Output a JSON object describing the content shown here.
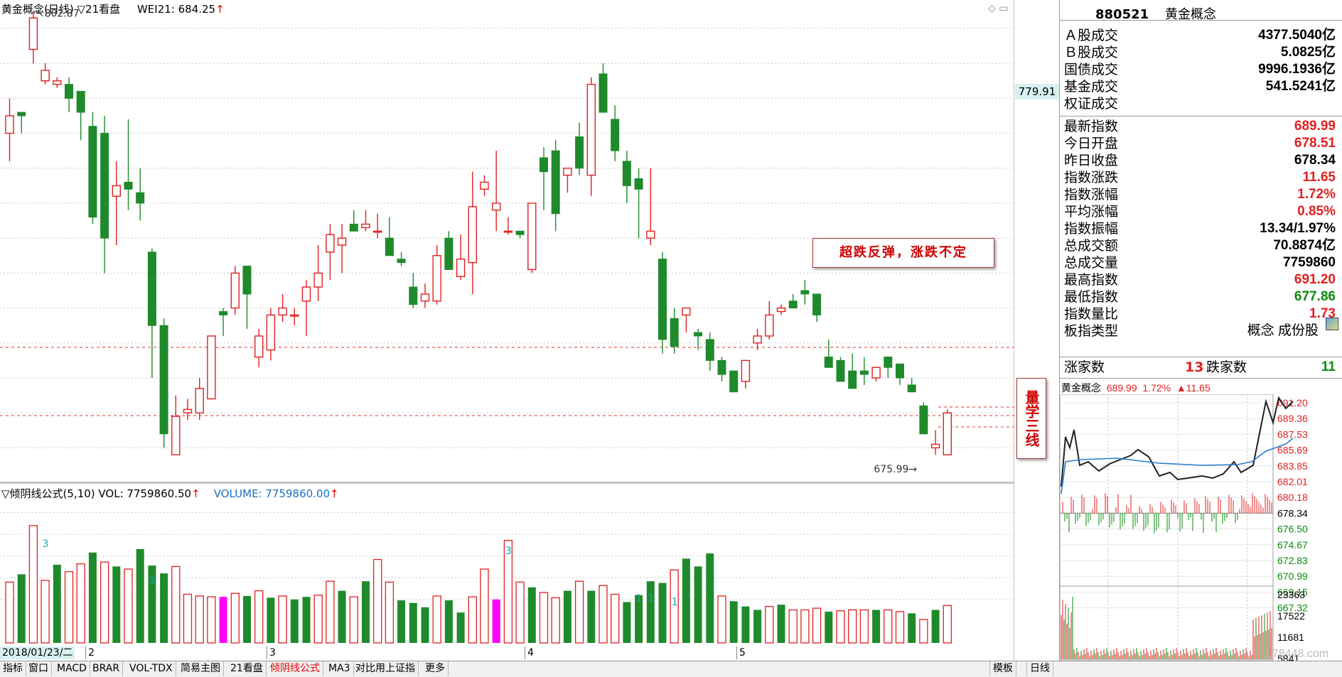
{
  "main": {
    "title": "黄金概念(日线)",
    "view": "▽21看盘",
    "wei_label": "WEI21: 684.25",
    "arrow": "↑",
    "y_ticks": [
      "800.0",
      "790.0",
      "780.0",
      "770.0",
      "760.0",
      "750.0",
      "740.0",
      "730.0",
      "720.0",
      "710.0",
      "700.0",
      "690.0",
      "680.0"
    ],
    "current_price_box": "779.91",
    "high_label": "802.87",
    "low_label": "675.99",
    "annotation": "超跌反弹，涨跌不定",
    "vertical_label": "量学三线",
    "corner_icons": "◇ ▭"
  },
  "volume": {
    "title": "▽倾阴线公式(5,10)",
    "vol_label": "VOL: 7759860.50",
    "volume_label": "VOLUME: 7759860.00",
    "arrow": "↑",
    "y_ticks": [
      "15000",
      "12500",
      "10000",
      "7500",
      "5000"
    ],
    "multiplier": "X1000",
    "markers": [
      "3",
      "3",
      "3",
      "1",
      "1",
      "1"
    ]
  },
  "x_axis": {
    "date": "2018/01/23/二",
    "months": [
      "2",
      "3",
      "4",
      "5"
    ],
    "period": "日线"
  },
  "panel": {
    "code": "880521",
    "name": "黄金概念",
    "rows": [
      {
        "label": "Ａ股成交",
        "value": "4377.5040亿",
        "color": "black"
      },
      {
        "label": "Ｂ股成交",
        "value": "5.0825亿",
        "color": "black"
      },
      {
        "label": "国债成交",
        "value": "9996.1936亿",
        "color": "black"
      },
      {
        "label": "基金成交",
        "value": "541.5241亿",
        "color": "black"
      },
      {
        "label": "权证成交",
        "value": "",
        "color": "black"
      },
      {
        "label": "最新指数",
        "value": "689.99",
        "color": "red"
      },
      {
        "label": "今日开盘",
        "value": "678.51",
        "color": "red"
      },
      {
        "label": "昨日收盘",
        "value": "678.34",
        "color": "black"
      },
      {
        "label": "指数涨跌",
        "value": "11.65",
        "color": "red"
      },
      {
        "label": "指数涨幅",
        "value": "1.72%",
        "color": "red"
      },
      {
        "label": "平均涨幅",
        "value": "0.85%",
        "color": "red"
      },
      {
        "label": "指数振幅",
        "value": "13.34/1.97%",
        "color": "black"
      },
      {
        "label": "总成交额",
        "value": "70.8874亿",
        "color": "black"
      },
      {
        "label": "总成交量",
        "value": "7759860",
        "color": "black"
      },
      {
        "label": "最高指数",
        "value": "691.20",
        "color": "red"
      },
      {
        "label": "最低指数",
        "value": "677.86",
        "color": "green"
      },
      {
        "label": "指数量比",
        "value": "1.73",
        "color": "red"
      },
      {
        "label": "板指类型",
        "value": "概念 成份股",
        "color": "black"
      }
    ],
    "up_label": "涨家数",
    "up_count": "13",
    "down_label": "跌家数",
    "down_count": "11",
    "mini_name": "黄金概念",
    "mini_price": "689.99",
    "mini_pct": "1.72%",
    "mini_change": "▲11.65",
    "mini_ticks_right": [
      "691.20",
      "689.36",
      "687.53",
      "685.69",
      "683.85",
      "682.01",
      "680.18",
      "678.34",
      "676.50",
      "674.67",
      "672.83",
      "670.99",
      "669.15",
      "667.32"
    ],
    "mini_vol_ticks": [
      "23363",
      "17522",
      "11681",
      "5841"
    ],
    "watermark": "178448.com"
  },
  "tabs": [
    "指标",
    "窗口",
    "MACD",
    "BRAR",
    "VOL-TDX",
    "简易主图",
    "21看盘",
    "倾阴线公式",
    "MA3",
    "对比用上证指",
    "更多"
  ],
  "tabs_right": [
    "模板",
    "日线"
  ],
  "colors": {
    "up": "#e02020",
    "down": "#1f8a2b",
    "magenta": "#ff00ff",
    "dash": "#e03030"
  }
}
